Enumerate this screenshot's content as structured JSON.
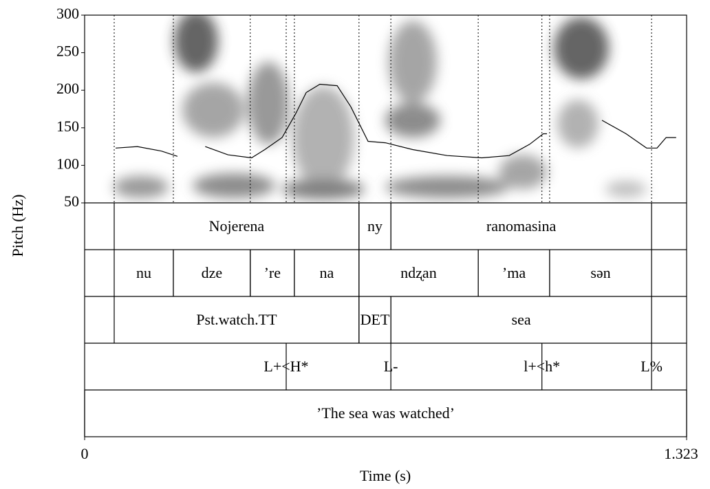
{
  "chart_data": {
    "type": "line",
    "ylabel": "Pitch (Hz)",
    "xlabel": "Time (s)",
    "xlim": [
      0,
      1.323
    ],
    "ylim": [
      50,
      300
    ],
    "xticks": [
      0,
      1.323
    ],
    "yticks": [
      50,
      100,
      150,
      200,
      250,
      300
    ],
    "x": [
      0.068,
      0.116,
      0.169,
      0.204,
      0.23,
      0.265,
      0.315,
      0.367,
      0.396,
      0.434,
      0.464,
      0.487,
      0.517,
      0.555,
      0.585,
      0.623,
      0.661,
      0.721,
      0.797,
      0.873,
      0.933,
      0.978,
      1.008,
      1.016,
      1.08,
      1.137,
      1.19,
      1.235,
      1.258,
      1.278,
      1.3
    ],
    "series": [
      {
        "color": "#000000",
        "values": [
          123,
          125,
          119,
          112,
          null,
          125,
          114,
          110,
          121,
          137,
          169,
          197,
          208,
          206,
          178,
          132,
          130,
          121,
          113,
          110,
          113,
          128,
          142,
          142,
          null,
          160,
          142,
          123,
          123,
          137,
          137
        ]
      }
    ],
    "tiers": [
      {
        "intervals": [
          {
            "start": 0.065,
            "end": 0.603,
            "text": "Nojerena"
          },
          {
            "start": 0.603,
            "end": 0.673,
            "text": "ny"
          },
          {
            "start": 0.673,
            "end": 1.246,
            "text": "ranomasina"
          }
        ]
      },
      {
        "intervals": [
          {
            "start": 0.065,
            "end": 0.195,
            "text": "nu"
          },
          {
            "start": 0.195,
            "end": 0.364,
            "text": "dze"
          },
          {
            "start": 0.364,
            "end": 0.461,
            "text": "’re"
          },
          {
            "start": 0.461,
            "end": 0.603,
            "text": "na"
          },
          {
            "start": 0.603,
            "end": 0.865,
            "text": "ndʐan"
          },
          {
            "start": 0.865,
            "end": 1.022,
            "text": "’ma"
          },
          {
            "start": 1.022,
            "end": 1.246,
            "text": "sən"
          }
        ]
      },
      {
        "intervals": [
          {
            "start": 0.065,
            "end": 0.603,
            "text": "Pst.watch.TT"
          },
          {
            "start": 0.603,
            "end": 0.673,
            "text": "DET"
          },
          {
            "start": 0.673,
            "end": 1.246,
            "text": "sea"
          }
        ]
      },
      {
        "points": [
          {
            "time": 0.443,
            "text": "L+<H*"
          },
          {
            "time": 0.673,
            "text": "L-"
          },
          {
            "time": 1.005,
            "text": "l+<h*"
          },
          {
            "time": 1.246,
            "text": "L%"
          }
        ]
      },
      {
        "intervals": [
          {
            "start": 0,
            "end": 1.323,
            "text": "’The sea was watched’"
          }
        ]
      }
    ]
  }
}
